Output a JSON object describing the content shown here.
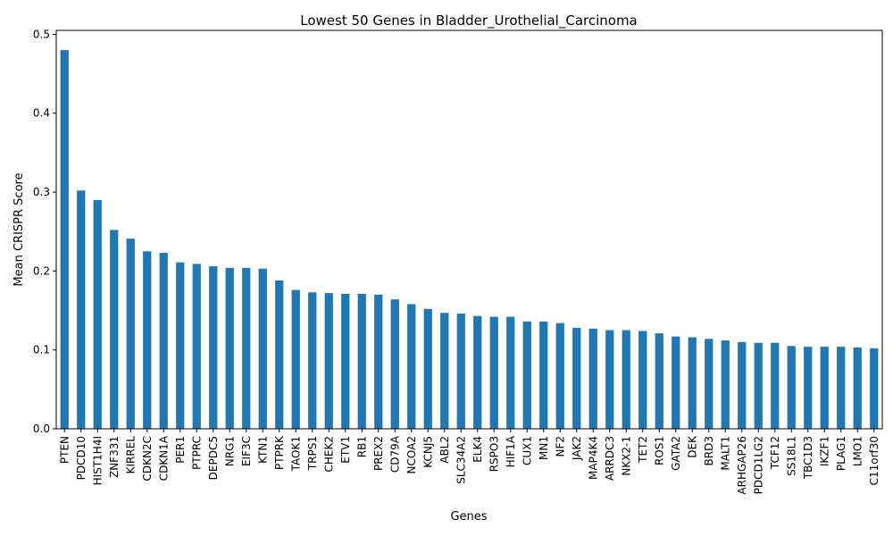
{
  "chart_data": {
    "type": "bar",
    "title": "Lowest 50 Genes in Bladder_Urothelial_Carcinoma",
    "xlabel": "Genes",
    "ylabel": "Mean CRISPR Score",
    "ylim": [
      0,
      0.505
    ],
    "yticks": [
      "0.0",
      "0.1",
      "0.2",
      "0.3",
      "0.4",
      "0.5"
    ],
    "bar_color": "#1f77b4",
    "grid": false,
    "legend": "none",
    "categories": [
      "PTEN",
      "PDCD10",
      "HIST1H4I",
      "ZNF331",
      "KIRREL",
      "CDKN2C",
      "CDKN1A",
      "PER1",
      "PTPRC",
      "DEPDC5",
      "NRG1",
      "EIF3C",
      "KTN1",
      "PTPRK",
      "TAOK1",
      "TRPS1",
      "CHEK2",
      "ETV1",
      "RB1",
      "PREX2",
      "CD79A",
      "NCOA2",
      "KCNJ5",
      "ABL2",
      "SLC34A2",
      "ELK4",
      "RSPO3",
      "HIF1A",
      "CUX1",
      "MN1",
      "NF2",
      "JAK2",
      "MAP4K4",
      "ARRDC3",
      "NKX2-1",
      "TET2",
      "ROS1",
      "GATA2",
      "DEK",
      "BRD3",
      "MALT1",
      "ARHGAP26",
      "PDCD1LG2",
      "TCF12",
      "SS18L1",
      "TBC1D3",
      "IKZF1",
      "PLAG1",
      "LMO1",
      "C11orf30"
    ],
    "values": [
      0.48,
      0.302,
      0.29,
      0.252,
      0.241,
      0.225,
      0.223,
      0.211,
      0.209,
      0.206,
      0.204,
      0.204,
      0.203,
      0.188,
      0.176,
      0.173,
      0.172,
      0.171,
      0.171,
      0.17,
      0.164,
      0.158,
      0.152,
      0.147,
      0.146,
      0.143,
      0.142,
      0.142,
      0.136,
      0.136,
      0.134,
      0.128,
      0.127,
      0.125,
      0.125,
      0.124,
      0.121,
      0.117,
      0.116,
      0.114,
      0.112,
      0.11,
      0.109,
      0.109,
      0.105,
      0.104,
      0.104,
      0.104,
      0.103,
      0.102
    ]
  }
}
